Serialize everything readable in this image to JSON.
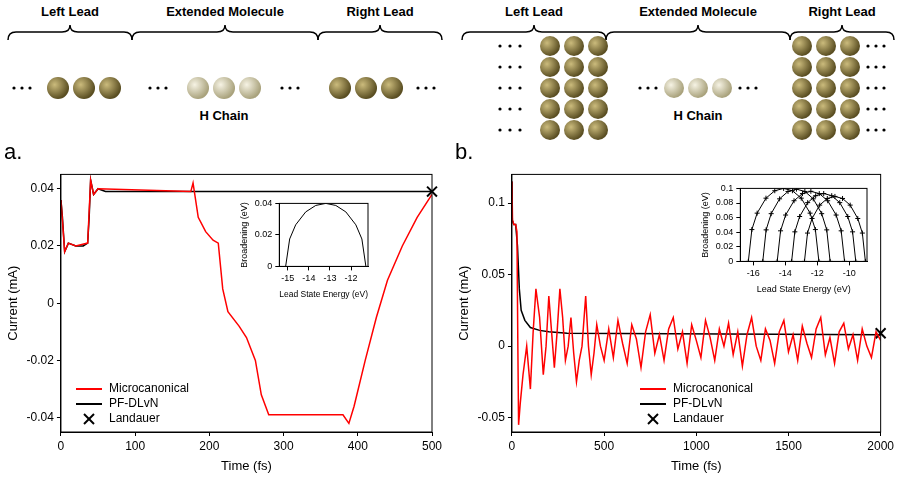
{
  "diagrams": [
    {
      "regions": [
        "Left Lead",
        "Extended Molecule",
        "Right Lead"
      ],
      "chain": "H Chain"
    },
    {
      "regions": [
        "Left Lead",
        "Extended Molecule",
        "Right Lead"
      ],
      "chain": "H Chain"
    }
  ],
  "chart_data": [
    {
      "type": "line",
      "title": "a.",
      "xlabel": "Time (fs)",
      "ylabel": "Current (mA)",
      "xlim": [
        0,
        500
      ],
      "xticks": [
        0,
        100,
        200,
        300,
        400,
        500
      ],
      "ylim": [
        -0.045,
        0.045
      ],
      "yticks": [
        -0.04,
        -0.02,
        0,
        0.02,
        0.04
      ],
      "grid": false,
      "legend": "lower left",
      "series": [
        {
          "name": "Microcanonical",
          "color": "#ff0000",
          "x": [
            0,
            5,
            10,
            20,
            36,
            40,
            44,
            50,
            175,
            178,
            185,
            195,
            205,
            212,
            218,
            225,
            240,
            250,
            262,
            270,
            280,
            300,
            380,
            388,
            395,
            410,
            425,
            440,
            460,
            480,
            500
          ],
          "values": [
            0.036,
            0.018,
            0.021,
            0.02,
            0.021,
            0.043,
            0.038,
            0.04,
            0.039,
            0.042,
            0.03,
            0.025,
            0.022,
            0.021,
            0.005,
            -0.003,
            -0.008,
            -0.012,
            -0.02,
            -0.032,
            -0.039,
            -0.039,
            -0.039,
            -0.042,
            -0.036,
            -0.02,
            -0.005,
            0.008,
            0.02,
            0.03,
            0.038
          ]
        },
        {
          "name": "PF-DLvN",
          "color": "#000000",
          "x": [
            0,
            2,
            5,
            10,
            20,
            30,
            36,
            38,
            40,
            44,
            50,
            60,
            500
          ],
          "values": [
            0.036,
            0.03,
            0.018,
            0.021,
            0.02,
            0.02,
            0.021,
            0.03,
            0.043,
            0.038,
            0.04,
            0.039,
            0.039
          ]
        },
        {
          "name": "Landauer",
          "color": "#000000",
          "type": "scatter",
          "marker": "x",
          "x": [
            500
          ],
          "values": [
            0.039
          ]
        }
      ],
      "inset": {
        "type": "line",
        "xlabel": "Lead State Energy (eV)",
        "ylabel": "Broadening (eV)",
        "xlim": [
          -15.4,
          -11.2
        ],
        "xticks": [
          -15,
          -14,
          -13,
          -12
        ],
        "ylim": [
          0,
          0.04
        ],
        "yticks": [
          0,
          0.02,
          0.04
        ],
        "grid": false,
        "series": [
          {
            "color": "#000000",
            "x": [
              -15.1,
              -14.91,
              -14.625,
              -14.15,
              -13.675,
              -13.2,
              -12.725,
              -12.25,
              -11.775,
              -11.49,
              -11.3
            ],
            "values": [
              0,
              0.0174,
              0.0264,
              0.0346,
              0.0387,
              0.04,
              0.0387,
              0.0346,
              0.0264,
              0.0174,
              0
            ]
          }
        ]
      }
    },
    {
      "type": "line",
      "title": "b.",
      "xlabel": "Time (fs)",
      "ylabel": "Current (mA)",
      "xlim": [
        0,
        2000
      ],
      "xticks": [
        0,
        500,
        1000,
        1500,
        2000
      ],
      "ylim": [
        -0.06,
        0.12
      ],
      "yticks": [
        -0.05,
        0,
        0.05,
        0.1
      ],
      "grid": false,
      "legend": "lower center",
      "series": [
        {
          "name": "Microcanonical",
          "color": "#ff0000",
          "x": [
            0,
            3,
            10,
            20,
            27,
            32,
            36,
            45,
            60,
            80,
            100,
            115,
            130,
            150,
            170,
            185,
            200,
            215,
            230,
            245,
            260,
            275,
            290,
            305,
            320,
            335,
            350,
            365,
            380,
            400,
            415,
            430,
            445,
            460,
            480,
            500,
            525,
            550,
            575,
            600,
            625,
            650,
            675,
            700,
            725,
            750,
            775,
            800,
            825,
            850,
            875,
            900,
            925,
            950,
            975,
            1000,
            1025,
            1050,
            1075,
            1100,
            1125,
            1150,
            1175,
            1200,
            1225,
            1250,
            1275,
            1300,
            1325,
            1350,
            1375,
            1400,
            1425,
            1450,
            1475,
            1500,
            1525,
            1550,
            1575,
            1600,
            1625,
            1650,
            1675,
            1700,
            1725,
            1750,
            1775,
            1800,
            1825,
            1850,
            1875,
            1900,
            1925,
            1950,
            1975,
            2000
          ],
          "values": [
            0.115,
            0.088,
            0.085,
            0.085,
            0.08,
            0.0,
            -0.055,
            -0.04,
            -0.02,
            0.0,
            -0.03,
            0.01,
            0.04,
            0.02,
            -0.02,
            0.0,
            0.035,
            0.01,
            -0.015,
            0.01,
            0.04,
            0.02,
            -0.01,
            0.0,
            0.02,
            -0.005,
            -0.025,
            -0.01,
            0.0,
            0.035,
            0.0,
            -0.02,
            -0.005,
            0.015,
            0.0,
            -0.01,
            0.012,
            -0.008,
            0.018,
            0.002,
            -0.012,
            0.015,
            0.005,
            -0.015,
            0.01,
            0.022,
            -0.005,
            0.008,
            -0.01,
            0.012,
            0.02,
            -0.002,
            0.01,
            -0.012,
            0.015,
            0.004,
            -0.008,
            0.018,
            0.006,
            -0.01,
            0.012,
            0.0,
            0.016,
            -0.006,
            0.01,
            -0.014,
            0.008,
            0.02,
            0.0,
            -0.01,
            0.012,
            0.004,
            -0.012,
            0.01,
            0.018,
            -0.004,
            0.008,
            -0.01,
            0.014,
            0.002,
            -0.008,
            0.012,
            0.02,
            -0.006,
            0.006,
            -0.012,
            0.01,
            0.016,
            -0.002,
            0.008,
            -0.01,
            0.012,
            0.0,
            -0.008,
            0.01,
            0.004
          ]
        },
        {
          "name": "PF-DLvN",
          "color": "#000000",
          "x": [
            0,
            2,
            10,
            20,
            30,
            40,
            50,
            70,
            100,
            150,
            200,
            300,
            2000
          ],
          "values": [
            0.115,
            0.088,
            0.085,
            0.085,
            0.07,
            0.04,
            0.025,
            0.018,
            0.013,
            0.011,
            0.01,
            0.009,
            0.008
          ]
        },
        {
          "name": "Landauer",
          "color": "#000000",
          "type": "scatter",
          "marker": "x",
          "x": [
            2000
          ],
          "values": [
            0.009
          ]
        }
      ],
      "inset": {
        "type": "line",
        "xlabel": "Lead State Energy (eV)",
        "ylabel": "Broadening (eV)",
        "xlim": [
          -16.8,
          -8.9
        ],
        "xticks": [
          -16,
          -14,
          -12,
          -10
        ],
        "ylim": [
          0,
          0.1
        ],
        "yticks": [
          0,
          0.02,
          0.04,
          0.06,
          0.08,
          0.1
        ],
        "grid": false,
        "series": [
          {
            "color": "#000000",
            "marker": "plus",
            "x": [
              -16.3,
              -16.08,
              -15.75,
              -15.2,
              -14.65,
              -14.1,
              -13.55,
              -13.0,
              -12.45,
              -12.12,
              -11.9
            ],
            "values": [
              0,
              0.0436,
              0.0661,
              0.0866,
              0.0968,
              0.1,
              0.0968,
              0.0866,
              0.0661,
              0.0436,
              0
            ]
          },
          {
            "color": "#000000",
            "marker": "plus",
            "x": [
              -15.4,
              -15.19,
              -14.875,
              -14.35,
              -13.825,
              -13.3,
              -12.775,
              -12.25,
              -11.725,
              -11.41,
              -11.2
            ],
            "values": [
              0,
              0.0432,
              0.0654,
              0.0857,
              0.0958,
              0.099,
              0.0958,
              0.0857,
              0.0654,
              0.0432,
              0
            ]
          },
          {
            "color": "#000000",
            "marker": "plus",
            "x": [
              -14.5,
              -14.29,
              -13.975,
              -13.45,
              -12.925,
              -12.4,
              -11.875,
              -11.35,
              -10.825,
              -10.51,
              -10.3
            ],
            "values": [
              0,
              0.0419,
              0.0635,
              0.0831,
              0.0929,
              0.096,
              0.0929,
              0.0831,
              0.0635,
              0.0419,
              0
            ]
          },
          {
            "color": "#000000",
            "marker": "plus",
            "x": [
              -13.6,
              -13.4,
              -13.1,
              -12.6,
              -12.1,
              -11.6,
              -11.1,
              -10.6,
              -10.1,
              -9.8,
              -9.6
            ],
            "values": [
              0,
              0.0405,
              0.0615,
              0.0805,
              0.09,
              0.093,
              0.09,
              0.0805,
              0.0615,
              0.0405,
              0
            ]
          },
          {
            "color": "#000000",
            "marker": "plus",
            "x": [
              -12.8,
              -12.61,
              -12.325,
              -11.85,
              -11.375,
              -10.9,
              -10.425,
              -9.95,
              -9.475,
              -9.19,
              -9.0
            ],
            "values": [
              0,
              0.0388,
              0.0588,
              0.0771,
              0.0862,
              0.089,
              0.0862,
              0.0771,
              0.0588,
              0.0388,
              0
            ]
          }
        ]
      }
    }
  ]
}
